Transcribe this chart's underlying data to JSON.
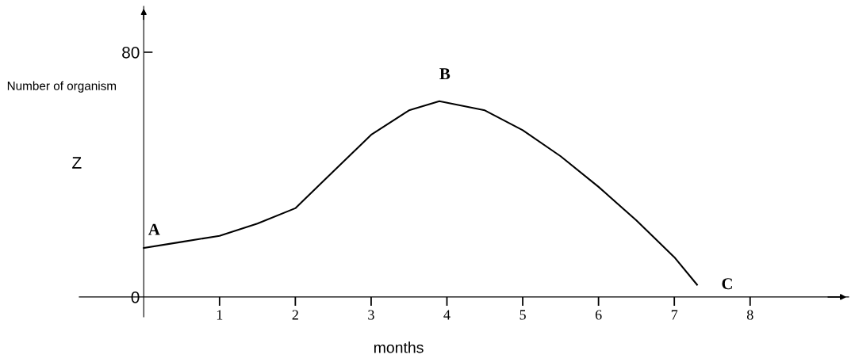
{
  "chart_data": {
    "type": "line",
    "xlabel": "months",
    "ylabel": "Number of organism",
    "x": [
      0,
      0.5,
      1,
      1.5,
      2,
      2.5,
      3,
      3.5,
      3.9,
      4.5,
      5,
      5.5,
      6,
      6.5,
      7,
      7.3
    ],
    "series": [
      {
        "color": "#000000",
        "values": [
          16,
          18,
          20,
          24,
          29,
          41,
          53,
          61,
          64,
          61,
          54.5,
          46,
          36,
          25,
          13,
          4
        ]
      }
    ],
    "xlim": [
      -0.85,
      9.3
    ],
    "ylim": [
      -6.5,
      95
    ],
    "xticks": [
      1,
      2,
      3,
      4,
      5,
      6,
      7,
      8
    ],
    "yticks": [
      0,
      80
    ],
    "annotations": [
      {
        "text": "A",
        "x": 0,
        "y": 16
      },
      {
        "text": "B",
        "x": 3.9,
        "y": 64
      },
      {
        "text": "C",
        "x": 7.3,
        "y": 4
      },
      "Z"
    ],
    "grid": false,
    "legend": false,
    "marker": "none",
    "line_style": "solid"
  }
}
